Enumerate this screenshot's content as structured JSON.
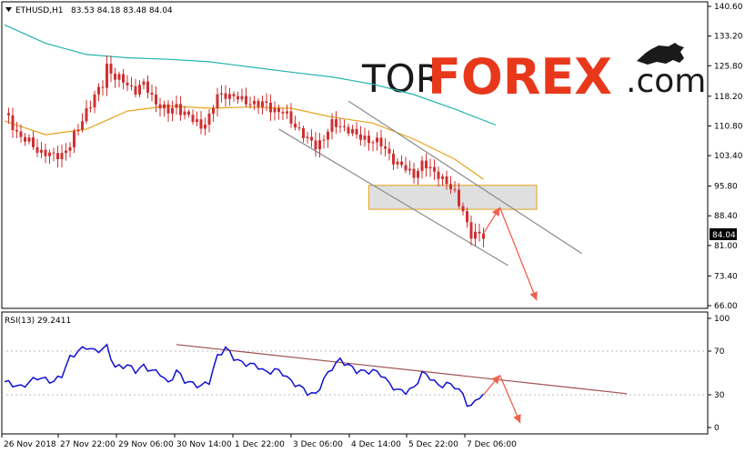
{
  "header": {
    "symbol": "ETHUSD,H1",
    "ohlc": "83.53 84.18 83.48 84.04"
  },
  "watermark": {
    "part1": "TOR",
    "part2": "FOREX",
    "part3": ".com",
    "colors": {
      "dark": "#1a1a1a",
      "accent": "#e8381b"
    }
  },
  "colors": {
    "background": "#ffffff",
    "candles": "#d03030",
    "ma_fast": "#e6a21b",
    "ma_slow": "#23b3ad",
    "channel": "#8c8c8c",
    "zone_fill": "#d9d9d9",
    "zone_border": "#e6a21b",
    "forecast_arrow": "#f06050",
    "rsi_line": "#1010d0",
    "rsi_trendline": "#a05050",
    "price_tag_bg": "#000000"
  },
  "price_tag": "84.04",
  "rsi": {
    "label": "RSI(13) 29.2411",
    "ticks": [
      "100",
      "70",
      "30",
      "0"
    ]
  },
  "time_labels": [
    "26 Nov 2018",
    "27 Nov 22:00",
    "29 Nov 06:00",
    "30 Nov 14:00",
    "1 Dec 22:00",
    "3 Dec 06:00",
    "4 Dec 14:00",
    "5 Dec 22:00",
    "7 Dec 06:00"
  ],
  "chart_data": [
    {
      "type": "candlestick",
      "title": "ETHUSD,H1",
      "yticks": [
        "140.60",
        "133.20",
        "125.80",
        "118.20",
        "110.80",
        "103.40",
        "95.80",
        "88.40",
        "81.00",
        "73.40",
        "66.00"
      ],
      "ylim": [
        66.0,
        140.6
      ],
      "close_path": [
        [
          0,
          114
        ],
        [
          4,
          108
        ],
        [
          8,
          105
        ],
        [
          12,
          103
        ],
        [
          14,
          104
        ],
        [
          16,
          106
        ],
        [
          18,
          110
        ],
        [
          20,
          115
        ],
        [
          22,
          118
        ],
        [
          24,
          121
        ],
        [
          25,
          126
        ],
        [
          27,
          123
        ],
        [
          30,
          121
        ],
        [
          32,
          120
        ],
        [
          34,
          121
        ],
        [
          36,
          118
        ],
        [
          38,
          116
        ],
        [
          40,
          114
        ],
        [
          42,
          116
        ],
        [
          44,
          114
        ],
        [
          46,
          112
        ],
        [
          48,
          111
        ],
        [
          50,
          113
        ],
        [
          52,
          118
        ],
        [
          54,
          119
        ],
        [
          56,
          118
        ],
        [
          58,
          117
        ],
        [
          60,
          117
        ],
        [
          62,
          116
        ],
        [
          64,
          116
        ],
        [
          66,
          115
        ],
        [
          68,
          114
        ],
        [
          70,
          112
        ],
        [
          72,
          110
        ],
        [
          74,
          107
        ],
        [
          76,
          106
        ],
        [
          78,
          108
        ],
        [
          80,
          111
        ],
        [
          82,
          111
        ],
        [
          84,
          110
        ],
        [
          86,
          108
        ],
        [
          88,
          108
        ],
        [
          90,
          107
        ],
        [
          92,
          106
        ],
        [
          94,
          104
        ],
        [
          96,
          101
        ],
        [
          98,
          100
        ],
        [
          100,
          99
        ],
        [
          102,
          101
        ],
        [
          104,
          100
        ],
        [
          106,
          99
        ],
        [
          108,
          96
        ],
        [
          110,
          94
        ],
        [
          112,
          90
        ],
        [
          113,
          86
        ],
        [
          114,
          83
        ],
        [
          116,
          84
        ],
        [
          117,
          84.04
        ]
      ],
      "ma_fast": [
        [
          0,
          112
        ],
        [
          10,
          108.6
        ],
        [
          20,
          110
        ],
        [
          30,
          114.5
        ],
        [
          40,
          115.8
        ],
        [
          50,
          115.2
        ],
        [
          60,
          115.5
        ],
        [
          70,
          115.2
        ],
        [
          80,
          113
        ],
        [
          90,
          111.5
        ],
        [
          100,
          107.5
        ],
        [
          110,
          102.5
        ],
        [
          117,
          97.5
        ]
      ],
      "ma_slow": [
        [
          0,
          136
        ],
        [
          10,
          131.4
        ],
        [
          20,
          128.6
        ],
        [
          30,
          127.8
        ],
        [
          40,
          127.4
        ],
        [
          50,
          126.8
        ],
        [
          60,
          125.5
        ],
        [
          70,
          124.2
        ],
        [
          80,
          123
        ],
        [
          90,
          121.2
        ],
        [
          100,
          118.6
        ],
        [
          110,
          115
        ],
        [
          120,
          111
        ]
      ],
      "channel_upper": [
        [
          84,
          117
        ],
        [
          141,
          79
        ]
      ],
      "channel_lower": [
        [
          67,
          110
        ],
        [
          123,
          76
        ]
      ],
      "resistance_zone": {
        "from": 90,
        "to": 96,
        "x_from": 89,
        "x_to": 130
      },
      "forecast_up": [
        [
          117,
          84.0
        ],
        [
          121,
          90.5
        ]
      ],
      "forecast_down": [
        [
          121,
          90.5
        ],
        [
          130,
          67.3
        ]
      ]
    },
    {
      "type": "line",
      "title": "RSI(13) 29.2411",
      "ylim": [
        0,
        100
      ],
      "yticks": [
        100,
        70,
        30,
        0
      ],
      "values": [
        [
          0,
          42
        ],
        [
          4,
          37
        ],
        [
          8,
          46
        ],
        [
          12,
          42
        ],
        [
          14,
          48
        ],
        [
          16,
          64
        ],
        [
          18,
          70
        ],
        [
          20,
          74
        ],
        [
          22,
          70
        ],
        [
          24,
          72
        ],
        [
          25,
          74
        ],
        [
          27,
          55
        ],
        [
          30,
          57
        ],
        [
          32,
          52
        ],
        [
          34,
          56
        ],
        [
          36,
          52
        ],
        [
          38,
          50
        ],
        [
          40,
          40
        ],
        [
          42,
          52
        ],
        [
          44,
          43
        ],
        [
          46,
          40
        ],
        [
          48,
          38
        ],
        [
          50,
          42
        ],
        [
          52,
          65
        ],
        [
          54,
          73
        ],
        [
          56,
          64
        ],
        [
          58,
          59
        ],
        [
          60,
          58
        ],
        [
          62,
          56
        ],
        [
          64,
          50
        ],
        [
          66,
          53
        ],
        [
          68,
          50
        ],
        [
          70,
          42
        ],
        [
          72,
          38
        ],
        [
          74,
          32
        ],
        [
          76,
          30
        ],
        [
          78,
          44
        ],
        [
          80,
          55
        ],
        [
          82,
          62
        ],
        [
          84,
          57
        ],
        [
          86,
          52
        ],
        [
          88,
          51
        ],
        [
          90,
          52
        ],
        [
          92,
          49
        ],
        [
          94,
          40
        ],
        [
          96,
          34
        ],
        [
          98,
          33
        ],
        [
          100,
          36
        ],
        [
          102,
          50
        ],
        [
          104,
          46
        ],
        [
          106,
          38
        ],
        [
          108,
          40
        ],
        [
          110,
          38
        ],
        [
          112,
          30
        ],
        [
          113,
          22
        ],
        [
          114,
          19
        ],
        [
          116,
          29
        ],
        [
          117,
          29.24
        ]
      ],
      "trendline": [
        [
          42,
          76
        ],
        [
          152,
          31
        ]
      ],
      "forecast_up": [
        [
          117,
          30
        ],
        [
          121,
          48
        ]
      ],
      "forecast_down": [
        [
          121,
          48
        ],
        [
          126,
          4
        ]
      ]
    }
  ]
}
